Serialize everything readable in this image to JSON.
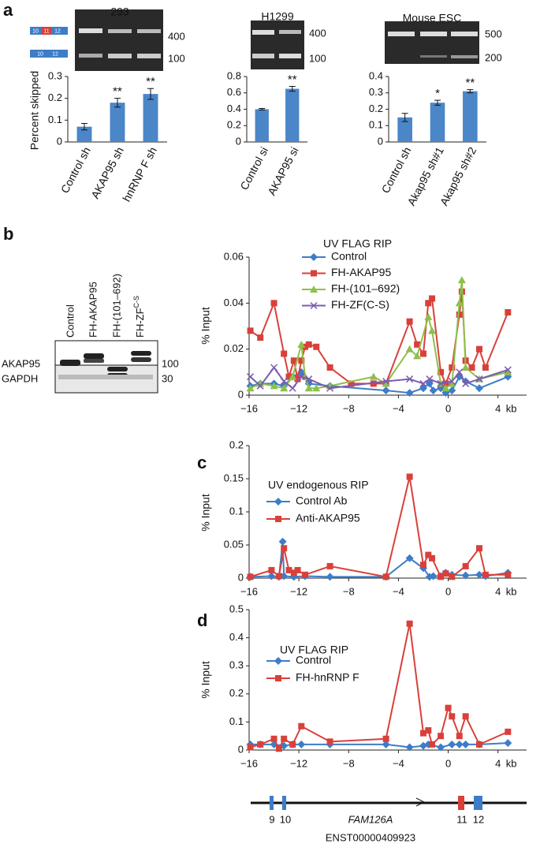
{
  "panels": [
    "a",
    "b",
    "c",
    "d"
  ],
  "gels": [
    {
      "markers": [
        "400",
        "100"
      ]
    },
    {
      "markers": [
        "400",
        "100"
      ]
    },
    {
      "markers": [
        "500",
        "200"
      ]
    }
  ],
  "exon_schematic": {
    "included": [
      "10",
      "11",
      "12"
    ],
    "skipped": [
      "10",
      "12"
    ]
  },
  "western_blot": {
    "lanes": [
      "Control",
      "FH-AKAP95",
      "FH-(101–692)",
      "FH-ZF"
    ],
    "last_lane_superscript": "C-S",
    "rows": [
      "AKAP95",
      "GAPDH"
    ],
    "markers": [
      "100",
      "30"
    ]
  },
  "gene_diagram": {
    "exons_left": [
      "9",
      "10"
    ],
    "gene": "FAM126A",
    "exons_right": [
      "11",
      "12"
    ],
    "transcript": "ENST00000409923"
  },
  "chart_data": [
    {
      "type": "bar",
      "title": "293",
      "y_label": "Percent skipped",
      "categories": [
        "Control sh",
        "AKAP95 sh",
        "hnRNP F sh"
      ],
      "values": [
        0.07,
        0.18,
        0.22
      ],
      "errors": [
        0.015,
        0.02,
        0.025
      ],
      "significance": [
        null,
        "**",
        "**"
      ],
      "color": "#4a86c8",
      "ylim": [
        0,
        0.3
      ],
      "yticks": [
        0,
        0.1,
        0.2,
        0.3
      ]
    },
    {
      "type": "bar",
      "title": "H1299",
      "categories": [
        "Control si",
        "AKAP95 si"
      ],
      "values": [
        0.4,
        0.65
      ],
      "errors": [
        0.01,
        0.03
      ],
      "significance": [
        null,
        "**"
      ],
      "color": "#4a86c8",
      "ylim": [
        0,
        0.8
      ],
      "yticks": [
        0,
        0.2,
        0.4,
        0.6,
        0.8
      ]
    },
    {
      "type": "bar",
      "title": "Mouse ESC",
      "categories": [
        "Control sh",
        "Akap95 sh#1",
        "Akap95 sh#2"
      ],
      "values": [
        0.15,
        0.24,
        0.31
      ],
      "errors": [
        0.025,
        0.015,
        0.01
      ],
      "significance": [
        null,
        "*",
        "**"
      ],
      "color": "#4a86c8",
      "ylim": [
        0,
        0.4
      ],
      "yticks": [
        0,
        0.1,
        0.2,
        0.3,
        0.4
      ]
    },
    {
      "type": "line",
      "title": "UV FLAG RIP",
      "y_label": "% Input",
      "x_label": "kb",
      "xlim": [
        -16,
        6.3
      ],
      "xticks": [
        {
          "value": -16,
          "label": "−16"
        },
        {
          "value": -12,
          "label": "−12"
        },
        {
          "value": -8,
          "label": "−8"
        },
        {
          "value": -4,
          "label": "−4"
        },
        0,
        4
      ],
      "ylim": [
        0,
        0.06
      ],
      "yticks": [
        0,
        0.02,
        0.04,
        0.06
      ],
      "legend": "upper left",
      "series": [
        {
          "name": "Control",
          "color": "#3d7dc8",
          "marker": "diamond",
          "x": [
            -15.9,
            -15.1,
            -14,
            -13.2,
            -12.5,
            -11.8,
            -11.2,
            -9.5,
            -5,
            -3.1,
            -2,
            -1.5,
            -1.2,
            -0.6,
            -0.2,
            0.3,
            0.9,
            1.4,
            2.5,
            4.8
          ],
          "values": [
            0.004,
            0.005,
            0.005,
            0.004,
            0.008,
            0.01,
            0.005,
            0.004,
            0.002,
            0.001,
            0.003,
            0.005,
            0.002,
            0.003,
            0.001,
            0.002,
            0.008,
            0.006,
            0.003,
            0.008
          ]
        },
        {
          "name": "FH-AKAP95",
          "color": "#d9403a",
          "marker": "square",
          "x": [
            -15.9,
            -15.1,
            -14,
            -13.2,
            -12.8,
            -12.4,
            -12.1,
            -11.8,
            -11.5,
            -11.2,
            -10.6,
            -9.5,
            -7.8,
            -6,
            -5,
            -3.1,
            -2.5,
            -2,
            -1.6,
            -1.3,
            -0.6,
            -0.2,
            0.3,
            0.9,
            1.1,
            1.4,
            1.9,
            2.5,
            3,
            4.8
          ],
          "values": [
            0.028,
            0.025,
            0.04,
            0.018,
            0.008,
            0.015,
            0.007,
            0.015,
            0.021,
            0.022,
            0.021,
            0.012,
            0.005,
            0.005,
            0.005,
            0.032,
            0.022,
            0.018,
            0.04,
            0.042,
            0.01,
            0.005,
            0.012,
            0.035,
            0.045,
            0.015,
            0.012,
            0.02,
            0.012,
            0.036
          ]
        },
        {
          "name": "FH-(101–692)",
          "color": "#8dc04a",
          "marker": "triangle",
          "x": [
            -15.9,
            -15.1,
            -14,
            -13.2,
            -12.5,
            -11.8,
            -11.5,
            -11.2,
            -10.6,
            -9.5,
            -6,
            -5,
            -3.1,
            -2.5,
            -1.6,
            -1.3,
            -0.6,
            -0.2,
            0.3,
            0.9,
            1.1,
            1.4,
            2.5,
            4.8
          ],
          "values": [
            0.003,
            0.005,
            0.004,
            0.003,
            0.008,
            0.022,
            0.008,
            0.003,
            0.003,
            0.004,
            0.008,
            0.005,
            0.02,
            0.017,
            0.034,
            0.028,
            0.005,
            0.003,
            0.005,
            0.04,
            0.05,
            0.012,
            0.007,
            0.01
          ]
        },
        {
          "name": "FH-ZF(C-S)",
          "color": "#7b5bb0",
          "marker": "x",
          "x": [
            -15.9,
            -15.1,
            -14,
            -13.2,
            -12.5,
            -11.8,
            -11.2,
            -9.5,
            -5,
            -3.1,
            -2,
            -1.5,
            -0.6,
            0.3,
            0.9,
            1.4,
            2.5,
            4.8
          ],
          "values": [
            0.008,
            0.004,
            0.012,
            0.006,
            0.003,
            0.008,
            0.007,
            0.003,
            0.006,
            0.007,
            0.005,
            0.007,
            0.005,
            0.006,
            0.01,
            0.005,
            0.007,
            0.011
          ]
        }
      ]
    },
    {
      "type": "line",
      "title": "UV endogenous RIP",
      "y_label": "% Input",
      "x_label": "kb",
      "xlim": [
        -16,
        6.3
      ],
      "xticks": [
        {
          "value": -16,
          "label": "−16"
        },
        {
          "value": -12,
          "label": "−12"
        },
        {
          "value": -8,
          "label": "−8"
        },
        {
          "value": -4,
          "label": "−4"
        },
        0,
        4
      ],
      "ylim": [
        0,
        0.2
      ],
      "yticks": [
        0,
        0.05,
        0.1,
        0.15,
        0.2
      ],
      "legend": "upper left",
      "series": [
        {
          "name": "Control Ab",
          "color": "#3d7dc8",
          "marker": "diamond",
          "x": [
            -15.9,
            -14.2,
            -13.6,
            -13.3,
            -13.2,
            -12.4,
            -11.5,
            -9.5,
            -5,
            -3.1,
            -2,
            -1.5,
            -1.2,
            -0.6,
            -0.2,
            0.3,
            1.4,
            2.5,
            3,
            4.8
          ],
          "values": [
            0.002,
            0.003,
            0.002,
            0.055,
            0.003,
            0.002,
            0.003,
            0.002,
            0.002,
            0.03,
            0.015,
            0.002,
            0.003,
            0.003,
            0.008,
            0.005,
            0.004,
            0.005,
            0.003,
            0.008
          ]
        },
        {
          "name": "Anti-AKAP95",
          "color": "#d9403a",
          "marker": "square",
          "x": [
            -15.9,
            -14.2,
            -13.6,
            -13.2,
            -12.8,
            -12.4,
            -12.1,
            -11.5,
            -9.5,
            -5,
            -3.1,
            -2,
            -1.6,
            -1.3,
            -0.6,
            -0.2,
            0.3,
            1.4,
            2.5,
            3,
            4.8
          ],
          "values": [
            0.002,
            0.012,
            0.003,
            0.045,
            0.012,
            0.008,
            0.012,
            0.005,
            0.018,
            0.002,
            0.153,
            0.02,
            0.035,
            0.03,
            0.002,
            0.007,
            0.002,
            0.018,
            0.045,
            0.005,
            0.005
          ]
        }
      ]
    },
    {
      "type": "line",
      "title": "UV FLAG RIP",
      "y_label": "% Input",
      "x_label": "kb",
      "xlim": [
        -16,
        6.3
      ],
      "xticks": [
        {
          "value": -16,
          "label": "−16"
        },
        {
          "value": -12,
          "label": "−12"
        },
        {
          "value": -8,
          "label": "−8"
        },
        {
          "value": -4,
          "label": "−4"
        },
        0,
        4
      ],
      "ylim": [
        0,
        0.5
      ],
      "yticks": [
        0,
        0.1,
        0.2,
        0.3,
        0.4,
        0.5
      ],
      "legend": "upper left",
      "series": [
        {
          "name": "Control",
          "color": "#3d7dc8",
          "marker": "diamond",
          "x": [
            -15.9,
            -15.1,
            -14,
            -13.2,
            -12.5,
            -11.8,
            -9.5,
            -5,
            -3.1,
            -2,
            -1.6,
            -0.6,
            0.3,
            0.9,
            1.4,
            2.5,
            4.8
          ],
          "values": [
            0.02,
            0.02,
            0.02,
            0.015,
            0.02,
            0.02,
            0.02,
            0.02,
            0.01,
            0.015,
            0.02,
            0.01,
            0.02,
            0.02,
            0.02,
            0.02,
            0.025
          ]
        },
        {
          "name": "FH-hnRNP F",
          "color": "#d9403a",
          "marker": "square",
          "x": [
            -15.9,
            -15.1,
            -14,
            -13.6,
            -13.2,
            -12.5,
            -11.8,
            -9.5,
            -5,
            -3.1,
            -2,
            -1.6,
            -1.3,
            -0.6,
            0,
            0.3,
            0.9,
            1.4,
            2.5,
            4.8
          ],
          "values": [
            0.01,
            0.02,
            0.04,
            0.005,
            0.04,
            0.02,
            0.085,
            0.03,
            0.04,
            0.45,
            0.06,
            0.07,
            0.02,
            0.05,
            0.15,
            0.12,
            0.05,
            0.12,
            0.02,
            0.065
          ]
        }
      ]
    }
  ]
}
